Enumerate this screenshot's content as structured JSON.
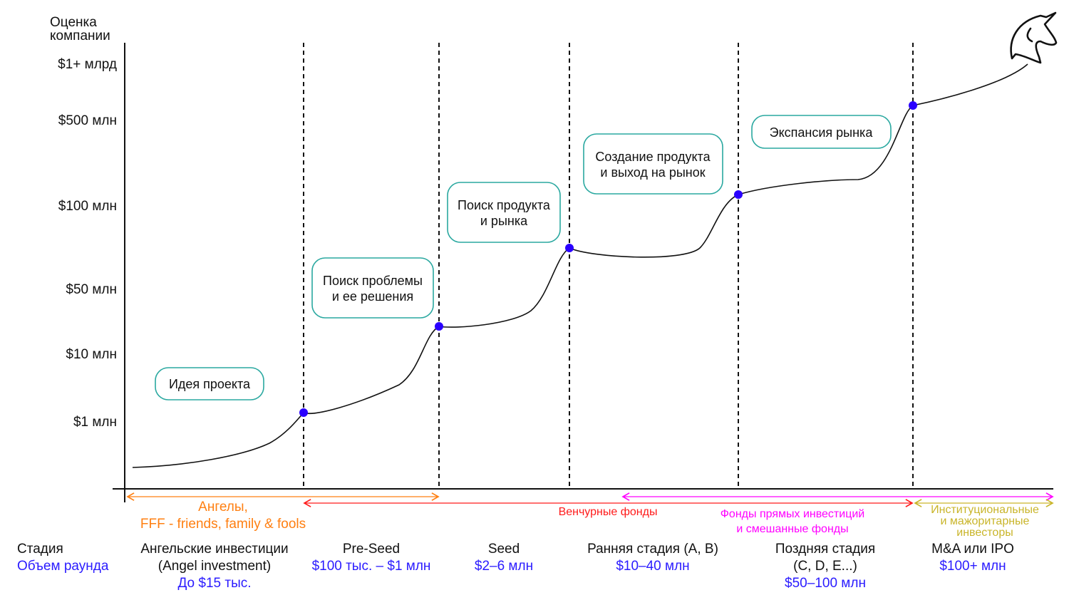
{
  "y_axis": {
    "title_line1": "Оценка",
    "title_line2": "компании",
    "ticks": [
      "$1+ млрд",
      "$500 млн",
      "$100 млн",
      "$50 млн",
      "$10 млн",
      "$1 млн"
    ]
  },
  "phases": [
    "Идея проекта",
    [
      "Поиск проблемы",
      "и ее решения"
    ],
    [
      "Поиск продукта",
      "и рынка"
    ],
    [
      "Создание продукта",
      "и выход на рынок"
    ],
    "Экспансия рынка"
  ],
  "investors": {
    "angels": [
      "Ангелы,",
      "FFF - friends, family & fools"
    ],
    "venture": "Венчурные фонды",
    "pe": [
      "Фонды прямых инвестиций",
      "и смешанные фонды"
    ],
    "institutional": [
      "Институциональные",
      "и мажоритарные",
      "инвесторы"
    ]
  },
  "row_labels": {
    "stage": "Стадия",
    "round": "Объем раунда"
  },
  "stages": [
    {
      "name": [
        "Ангельские инвестиции",
        "(Angel investment)"
      ],
      "round": "До $15 тыс."
    },
    {
      "name": [
        "Pre-Seed"
      ],
      "round": "$100 тыс. – $1 млн"
    },
    {
      "name": [
        "Seed"
      ],
      "round": "$2–6 млн"
    },
    {
      "name": [
        "Ранняя стадия (A, B)"
      ],
      "round": "$10–40 млн"
    },
    {
      "name": [
        "Поздняя стадия",
        "(C, D, E...)"
      ],
      "round": "$50–100 млн"
    },
    {
      "name": [
        "M&A или IPO"
      ],
      "round": "$100+ млн"
    }
  ],
  "colors": {
    "dot": "#2a00ff",
    "box": "#2aa8a0",
    "angels": "#ff7f11",
    "venture": "#ff1a1a",
    "pe": "#ff00ff",
    "institutional": "#c9b52a",
    "round": "#2a1bff"
  }
}
